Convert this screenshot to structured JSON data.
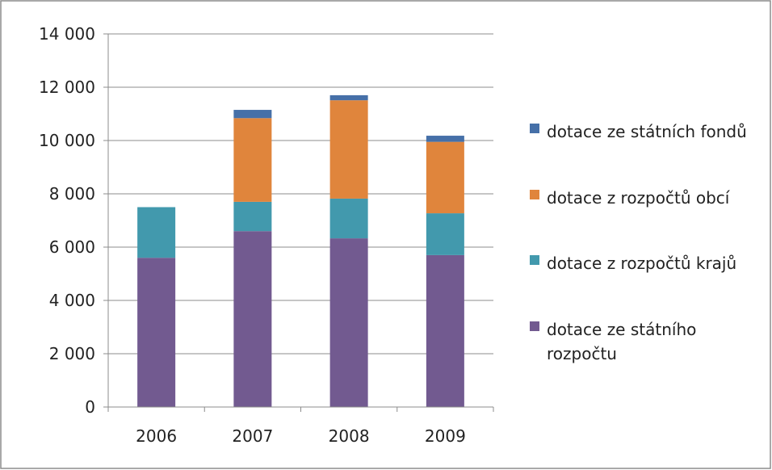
{
  "chart_data": {
    "type": "bar",
    "stacked": true,
    "categories": [
      "2006",
      "2007",
      "2008",
      "2009"
    ],
    "series": [
      {
        "name": "dotace ze státního rozpočtu",
        "color": "#725a90",
        "values": [
          5600,
          6600,
          6330,
          5700
        ]
      },
      {
        "name": "dotace z rozpočtů krajů",
        "color": "#4299ad",
        "values": [
          1900,
          1100,
          1490,
          1570
        ]
      },
      {
        "name": "dotace z rozpočtů obcí",
        "color": "#e0853c",
        "values": [
          0,
          3140,
          3690,
          2680
        ]
      },
      {
        "name": "dotace ze státních fondů",
        "color": "#4670a8",
        "values": [
          0,
          310,
          190,
          230
        ]
      }
    ],
    "ylim": [
      0,
      14000
    ],
    "yticks": [
      0,
      2000,
      4000,
      6000,
      8000,
      10000,
      12000,
      14000
    ],
    "ytick_labels": [
      "0",
      "2 000",
      "4 000",
      "6 000",
      "8 000",
      "10 000",
      "12 000",
      "14 000"
    ],
    "grid": true,
    "legend_position": "right",
    "legend_order": [
      "dotace ze státních fondů",
      "dotace z rozpočtů obcí",
      "dotace z rozpočtů krajů",
      "dotace ze státního rozpočtu"
    ]
  }
}
